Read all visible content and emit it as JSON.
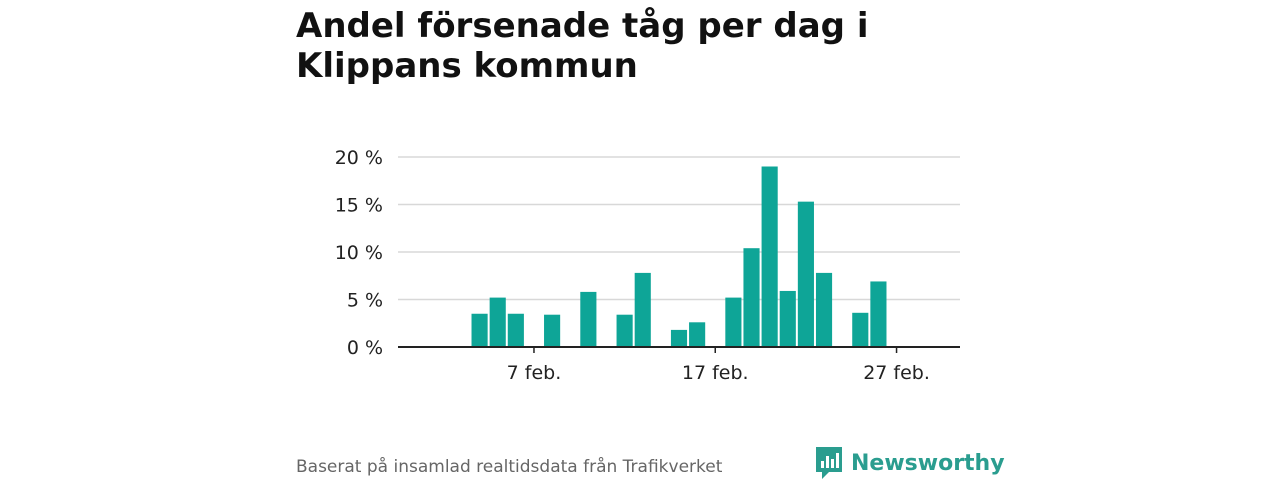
{
  "title": "Andel försenade tåg per dag i Klippans kommun",
  "source": "Baserat på insamlad realtidsdata från Trafikverket",
  "brand": "Newsworthy",
  "colors": {
    "bar": "#0ea597",
    "brand": "#2a9d8f",
    "grid": "#d8d8d8",
    "axis": "#222222"
  },
  "chart_data": {
    "type": "bar",
    "title": "Andel försenade tåg per dag i Klippans kommun",
    "xlabel": "",
    "ylabel": "",
    "x_domain": [
      "2024-01-31",
      "2024-03-02"
    ],
    "ylim": [
      0,
      20
    ],
    "y_ticks": [
      {
        "value": 0,
        "label": "0 %"
      },
      {
        "value": 5,
        "label": "5 %"
      },
      {
        "value": 10,
        "label": "10 %"
      },
      {
        "value": 15,
        "label": "15 %"
      },
      {
        "value": 20,
        "label": "20 %"
      }
    ],
    "x_ticks": [
      {
        "date": "2024-02-07",
        "label": "7 feb."
      },
      {
        "date": "2024-02-17",
        "label": "17 feb."
      },
      {
        "date": "2024-02-27",
        "label": "27 feb."
      }
    ],
    "grid": true,
    "data": [
      {
        "date": "2024-02-04",
        "value": 3.5
      },
      {
        "date": "2024-02-05",
        "value": 5.2
      },
      {
        "date": "2024-02-06",
        "value": 3.5
      },
      {
        "date": "2024-02-07",
        "value": 0
      },
      {
        "date": "2024-02-08",
        "value": 3.4
      },
      {
        "date": "2024-02-09",
        "value": 0
      },
      {
        "date": "2024-02-10",
        "value": 5.8
      },
      {
        "date": "2024-02-11",
        "value": 0
      },
      {
        "date": "2024-02-12",
        "value": 3.4
      },
      {
        "date": "2024-02-13",
        "value": 7.8
      },
      {
        "date": "2024-02-14",
        "value": 0
      },
      {
        "date": "2024-02-15",
        "value": 1.8
      },
      {
        "date": "2024-02-16",
        "value": 2.6
      },
      {
        "date": "2024-02-17",
        "value": 0
      },
      {
        "date": "2024-02-18",
        "value": 5.2
      },
      {
        "date": "2024-02-19",
        "value": 10.4
      },
      {
        "date": "2024-02-20",
        "value": 19.0
      },
      {
        "date": "2024-02-21",
        "value": 5.9
      },
      {
        "date": "2024-02-22",
        "value": 15.3
      },
      {
        "date": "2024-02-23",
        "value": 7.8
      },
      {
        "date": "2024-02-24",
        "value": 0
      },
      {
        "date": "2024-02-25",
        "value": 3.6
      },
      {
        "date": "2024-02-26",
        "value": 6.9
      },
      {
        "date": "2024-02-27",
        "value": 0
      },
      {
        "date": "2024-02-28",
        "value": 0
      },
      {
        "date": "2024-02-29",
        "value": 0
      }
    ]
  }
}
